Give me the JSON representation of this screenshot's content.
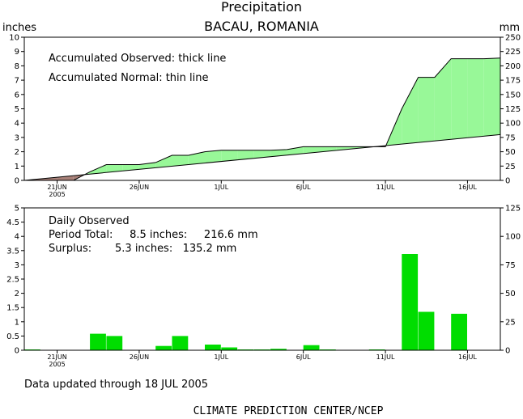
{
  "title": "Precipitation",
  "location": "BACAU, ROMANIA",
  "unit_left": "inches",
  "unit_right": "mm",
  "top_note_1": "Accumulated Observed: thick line",
  "top_note_2": "Accumulated Normal: thin line",
  "bottom_note_1": "Daily Observed",
  "bottom_note_2": "Period Total:     8.5 inches:     216.6 mm",
  "bottom_note_3": "Surplus:       5.3 inches:   135.2 mm",
  "updated": "Data updated through 18 JUL 2005",
  "credit": "CLIMATE PREDICTION CENTER/NCEP",
  "colors": {
    "surplus_fill": "#98f898",
    "deficit_fill": "#a88078",
    "bar_fill": "#00dd00",
    "line": "#000000"
  },
  "chart_data": [
    {
      "type": "area",
      "panel": "accumulated",
      "x_unit": "day index from 19 JUN 2005",
      "x_ticks": [
        {
          "day": 2,
          "label": "21JUN",
          "sub": "2005"
        },
        {
          "day": 7,
          "label": "26JUN"
        },
        {
          "day": 12,
          "label": "1JUL"
        },
        {
          "day": 17,
          "label": "6JUL"
        },
        {
          "day": 22,
          "label": "11JUL"
        },
        {
          "day": 27,
          "label": "16JUL"
        }
      ],
      "xlim": [
        0,
        29
      ],
      "ylim": [
        0,
        10
      ],
      "yticks_left": [
        "0",
        "1",
        "2",
        "3",
        "4",
        "5",
        "6",
        "7",
        "8",
        "9",
        "10"
      ],
      "yticks_right": [
        "0",
        "25",
        "50",
        "75",
        "100",
        "125",
        "150",
        "175",
        "200",
        "225",
        "250"
      ],
      "series": [
        {
          "name": "Accumulated Observed",
          "x": [
            0,
            1,
            2,
            3,
            4,
            5,
            6,
            7,
            8,
            9,
            10,
            11,
            12,
            13,
            14,
            15,
            16,
            17,
            18,
            19,
            20,
            21,
            22,
            23,
            24,
            25,
            26,
            27,
            28,
            29
          ],
          "y": [
            0.0,
            0.0,
            0.0,
            0.0,
            0.6,
            1.1,
            1.1,
            1.1,
            1.25,
            1.75,
            1.75,
            2.0,
            2.1,
            2.1,
            2.1,
            2.1,
            2.15,
            2.35,
            2.35,
            2.35,
            2.35,
            2.35,
            2.35,
            5.0,
            7.2,
            7.2,
            8.5,
            8.5,
            8.5,
            8.55
          ]
        },
        {
          "name": "Accumulated Normal",
          "x": [
            0,
            29
          ],
          "y": [
            0.0,
            3.2
          ]
        }
      ]
    },
    {
      "type": "bar",
      "panel": "daily",
      "x_unit": "day index from 19 JUN 2005",
      "xlim": [
        0,
        29
      ],
      "ylim": [
        0,
        5
      ],
      "yticks_left": [
        "0",
        "0.5",
        "1",
        "1.5",
        "2",
        "2.5",
        "3",
        "3.5",
        "4",
        "4.5",
        "5"
      ],
      "yticks_right": [
        "0",
        "25",
        "50",
        "75",
        "100",
        "125"
      ],
      "series": [
        {
          "name": "Daily Observed",
          "x": [
            0,
            1,
            2,
            3,
            4,
            5,
            6,
            7,
            8,
            9,
            10,
            11,
            12,
            13,
            14,
            15,
            16,
            17,
            18,
            19,
            20,
            21,
            22,
            23,
            24,
            25,
            26,
            27,
            28
          ],
          "y": [
            0.01,
            0.0,
            0.0,
            0.0,
            0.58,
            0.5,
            0.0,
            0.0,
            0.15,
            0.5,
            0.0,
            0.2,
            0.1,
            0.02,
            0.02,
            0.05,
            0.0,
            0.18,
            0.01,
            0.0,
            0.0,
            0.01,
            0.0,
            3.38,
            1.35,
            0.0,
            1.28,
            0.0,
            0.0
          ]
        }
      ]
    }
  ]
}
